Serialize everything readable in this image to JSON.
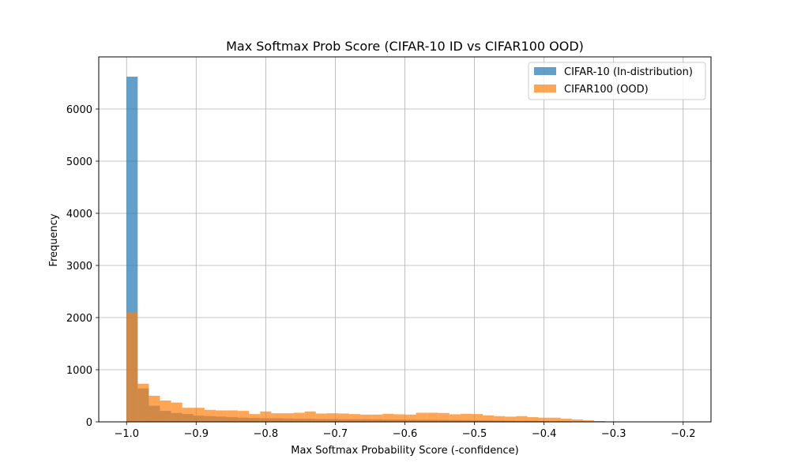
{
  "chart_data": {
    "type": "bar",
    "title": "Max Softmax Prob Score (CIFAR-10 ID vs CIFAR100 OOD)",
    "xlabel": "Max Softmax Probability Score (-confidence)",
    "ylabel": "Frequency",
    "xlim": [
      -1.04,
      -0.16
    ],
    "ylim": [
      0,
      7000
    ],
    "xticks": [
      -1.0,
      -0.9,
      -0.8,
      -0.7,
      -0.6,
      -0.5,
      -0.4,
      -0.3,
      -0.2
    ],
    "xtick_labels": [
      "−1.0",
      "−0.9",
      "−0.8",
      "−0.7",
      "−0.6",
      "−0.5",
      "−0.4",
      "−0.3",
      "−0.2"
    ],
    "yticks": [
      0,
      1000,
      2000,
      3000,
      4000,
      5000,
      6000
    ],
    "yticks_labels": [
      "0",
      "1000",
      "2000",
      "3000",
      "4000",
      "5000",
      "6000"
    ],
    "grid": true,
    "legend_position": "top-right",
    "series": [
      {
        "name": "CIFAR-10 (In-distribution)",
        "color": "#1f77b4",
        "opacity": 0.7,
        "bin_width": 0.016,
        "bin_starts": [
          -1.0,
          -0.984,
          -0.968,
          -0.952,
          -0.936,
          -0.92,
          -0.904,
          -0.888,
          -0.872,
          -0.856,
          -0.84,
          -0.824,
          -0.808,
          -0.792,
          -0.776,
          -0.76,
          -0.744,
          -0.728,
          -0.712,
          -0.696,
          -0.68,
          -0.664,
          -0.648,
          -0.632,
          -0.616,
          -0.6,
          -0.584,
          -0.568,
          -0.552,
          -0.536,
          -0.52,
          -0.504,
          -0.488,
          -0.472,
          -0.456,
          -0.44,
          -0.424,
          -0.408,
          -0.392,
          -0.376,
          -0.36,
          -0.344,
          -0.328
        ],
        "values": [
          6620,
          640,
          310,
          210,
          170,
          150,
          120,
          110,
          100,
          90,
          80,
          75,
          70,
          70,
          65,
          60,
          60,
          55,
          55,
          50,
          50,
          50,
          48,
          45,
          45,
          42,
          40,
          40,
          38,
          35,
          33,
          30,
          28,
          25,
          22,
          20,
          18,
          15,
          12,
          10,
          8,
          6,
          4
        ]
      },
      {
        "name": "CIFAR100 (OOD)",
        "color": "#ff7f0e",
        "opacity": 0.7,
        "bin_width": 0.016,
        "bin_starts": [
          -1.0,
          -0.984,
          -0.968,
          -0.952,
          -0.936,
          -0.92,
          -0.904,
          -0.888,
          -0.872,
          -0.856,
          -0.84,
          -0.824,
          -0.808,
          -0.792,
          -0.776,
          -0.76,
          -0.744,
          -0.728,
          -0.712,
          -0.696,
          -0.68,
          -0.664,
          -0.648,
          -0.632,
          -0.616,
          -0.6,
          -0.584,
          -0.568,
          -0.552,
          -0.536,
          -0.52,
          -0.504,
          -0.488,
          -0.472,
          -0.456,
          -0.44,
          -0.424,
          -0.408,
          -0.392,
          -0.376,
          -0.36,
          -0.344,
          -0.328
        ],
        "values": [
          2100,
          730,
          500,
          410,
          370,
          270,
          270,
          230,
          220,
          220,
          210,
          150,
          200,
          165,
          165,
          175,
          200,
          160,
          165,
          160,
          150,
          140,
          140,
          155,
          145,
          140,
          175,
          175,
          170,
          145,
          155,
          150,
          125,
          110,
          100,
          110,
          90,
          80,
          80,
          60,
          45,
          30,
          15
        ]
      }
    ]
  }
}
